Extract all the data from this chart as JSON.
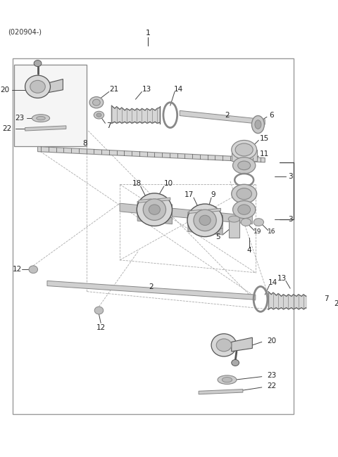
{
  "title": "(020904-)",
  "bg_color": "#ffffff",
  "border_color": "#999999",
  "line_color": "#444444",
  "gray1": "#bbbbbb",
  "gray2": "#888888",
  "gray3": "#555555",
  "fig_width": 4.8,
  "fig_height": 6.5,
  "dpi": 100
}
